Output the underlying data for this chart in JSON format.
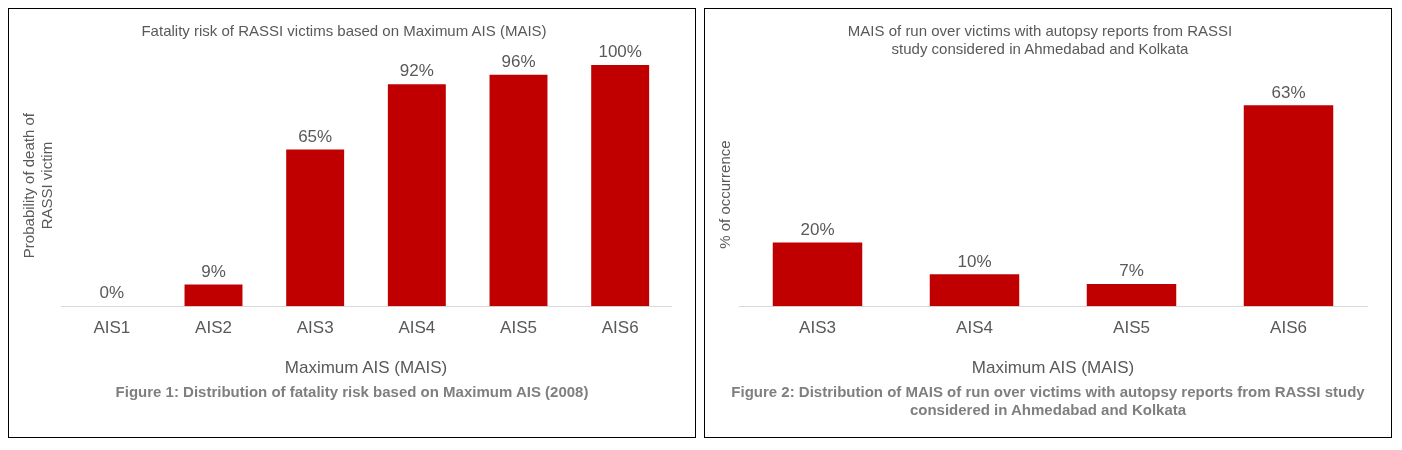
{
  "chart_data": [
    {
      "type": "bar",
      "title": "Fatality risk of RASSI victims based on Maximum AIS (MAIS)",
      "xlabel": "Maximum AIS (MAIS)",
      "ylabel": "Probability of death of RASSI victim",
      "categories": [
        "AIS1",
        "AIS2",
        "AIS3",
        "AIS4",
        "AIS5",
        "AIS6"
      ],
      "values": [
        0,
        9,
        65,
        92,
        96,
        100
      ],
      "value_labels": [
        "0%",
        "9%",
        "65%",
        "92%",
        "96%",
        "100%"
      ],
      "color": "#c00000",
      "grid": false,
      "legend": false,
      "tick_labels": "x",
      "annotations": [
        "Figure 1: Distribution of fatality risk based on Maximum AIS (2008)"
      ]
    },
    {
      "type": "bar",
      "title": "MAIS of run over victims with autopsy reports from RASSI study considered in Ahmedabad and Kolkata",
      "xlabel": "Maximum AIS (MAIS)",
      "ylabel": "% of occurrence",
      "categories": [
        "AIS3",
        "AIS4",
        "AIS5",
        "AIS6"
      ],
      "values": [
        20,
        10,
        7,
        63
      ],
      "value_labels": [
        "20%",
        "10%",
        "7%",
        "63%"
      ],
      "color": "#c00000",
      "grid": false,
      "legend": false,
      "tick_labels": "x",
      "annotations": [
        "Figure 2: Distribution of MAIS of run over victims with autopsy reports from RASSI study considered in Ahmedabad and Kolkata"
      ]
    }
  ]
}
